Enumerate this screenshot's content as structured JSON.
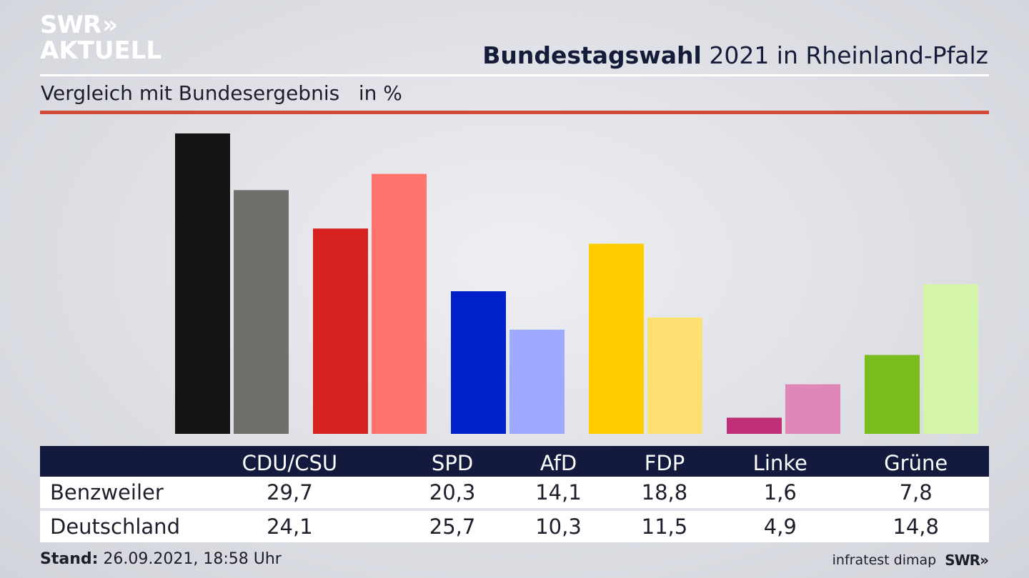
{
  "brand": {
    "line1": "SWR",
    "chevrons": "»",
    "line2": "AKTUELL"
  },
  "header": {
    "title_bold": "Bundestagswahl",
    "title_rest": " 2021 in Rheinland-Pfalz"
  },
  "subtitle": "Vergleich mit Bundesergebnis   in %",
  "colors": {
    "benzweiler": [
      "#141414",
      "#d62121",
      "#0021c9",
      "#ffcc00",
      "#be2f78",
      "#78bc1e"
    ],
    "deutschland": [
      "#716f6c",
      "#ff746d",
      "#9eaaff",
      "#fde072",
      "#e087b7",
      "#d4f5a8"
    ]
  },
  "chart_data": {
    "type": "bar",
    "title": "Bundestagswahl 2021 in Rheinland-Pfalz",
    "subtitle": "Vergleich mit Bundesergebnis in %",
    "categories": [
      "CDU/CSU",
      "SPD",
      "AfD",
      "FDP",
      "Linke",
      "Grüne"
    ],
    "series": [
      {
        "name": "Benzweiler",
        "values": [
          29.7,
          20.3,
          14.1,
          18.8,
          1.6,
          7.8
        ]
      },
      {
        "name": "Deutschland",
        "values": [
          24.1,
          25.7,
          10.3,
          11.5,
          4.9,
          14.8
        ]
      }
    ],
    "ylim": [
      0,
      29.7
    ],
    "xlabel": "",
    "ylabel": "",
    "grid": false
  },
  "table": {
    "headers": [
      "CDU/CSU",
      "SPD",
      "AfD",
      "FDP",
      "Linke",
      "Grüne"
    ],
    "rows": [
      {
        "label": "Benzweiler",
        "values": [
          "29,7",
          "20,3",
          "14,1",
          "18,8",
          "1,6",
          "7,8"
        ]
      },
      {
        "label": "Deutschland",
        "values": [
          "24,1",
          "25,7",
          "10,3",
          "11,5",
          "4,9",
          "14,8"
        ]
      }
    ]
  },
  "footer": {
    "stand_label": "Stand:",
    "stand_value": " 26.09.2021, 18:58 Uhr",
    "source": "infratest dimap",
    "brand": "SWR»"
  }
}
